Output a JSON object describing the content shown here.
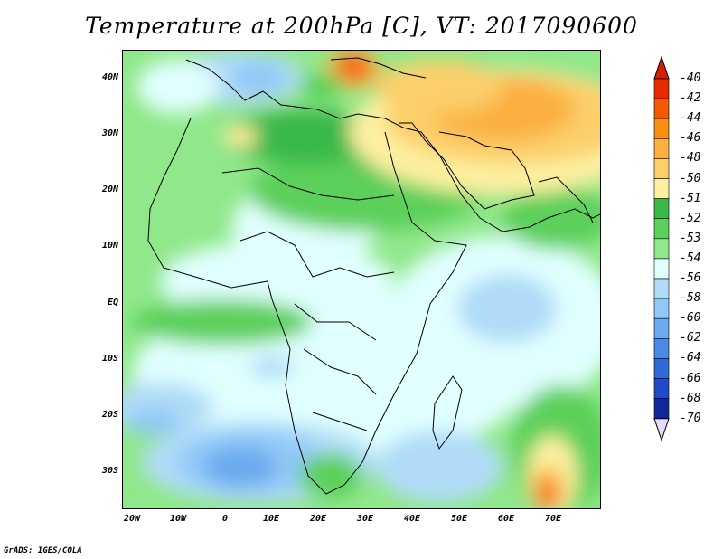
{
  "title": "Temperature at 200hPa [C], VT: 2017090600",
  "credit": "GrADS: IGES/COLA",
  "map": {
    "variable": "Temperature",
    "level": "200hPa",
    "units": "C",
    "valid_time": "2017090600",
    "lat_range": [
      -36,
      45
    ],
    "lon_range": [
      -23,
      80
    ],
    "lat_ticks": [
      "40N",
      "30N",
      "20N",
      "10N",
      "EQ",
      "10S",
      "20S",
      "30S"
    ],
    "lon_ticks": [
      "20W",
      "10W",
      "0",
      "10E",
      "20E",
      "30E",
      "40E",
      "50E",
      "60E",
      "70E"
    ]
  },
  "legend": {
    "levels": [
      "-40",
      "-42",
      "-44",
      "-46",
      "-48",
      "-50",
      "-51",
      "-52",
      "-53",
      "-54",
      "-56",
      "-58",
      "-60",
      "-62",
      "-64",
      "-66",
      "-68",
      "-70"
    ],
    "colors": [
      "#e82a00",
      "#f45a00",
      "#f88f10",
      "#fbb040",
      "#fccf6a",
      "#fdf0a0",
      "#39b848",
      "#5bd05a",
      "#90e88a",
      "#e0fffe",
      "#b0dcf8",
      "#90c8f8",
      "#6aaaee",
      "#4a8ae4",
      "#2f6ad8",
      "#1f4ac8",
      "#10289c",
      "#0a0a66"
    ],
    "top_arrow_color": "#d42000",
    "bottom_arrow_color": "#e4dcff"
  }
}
